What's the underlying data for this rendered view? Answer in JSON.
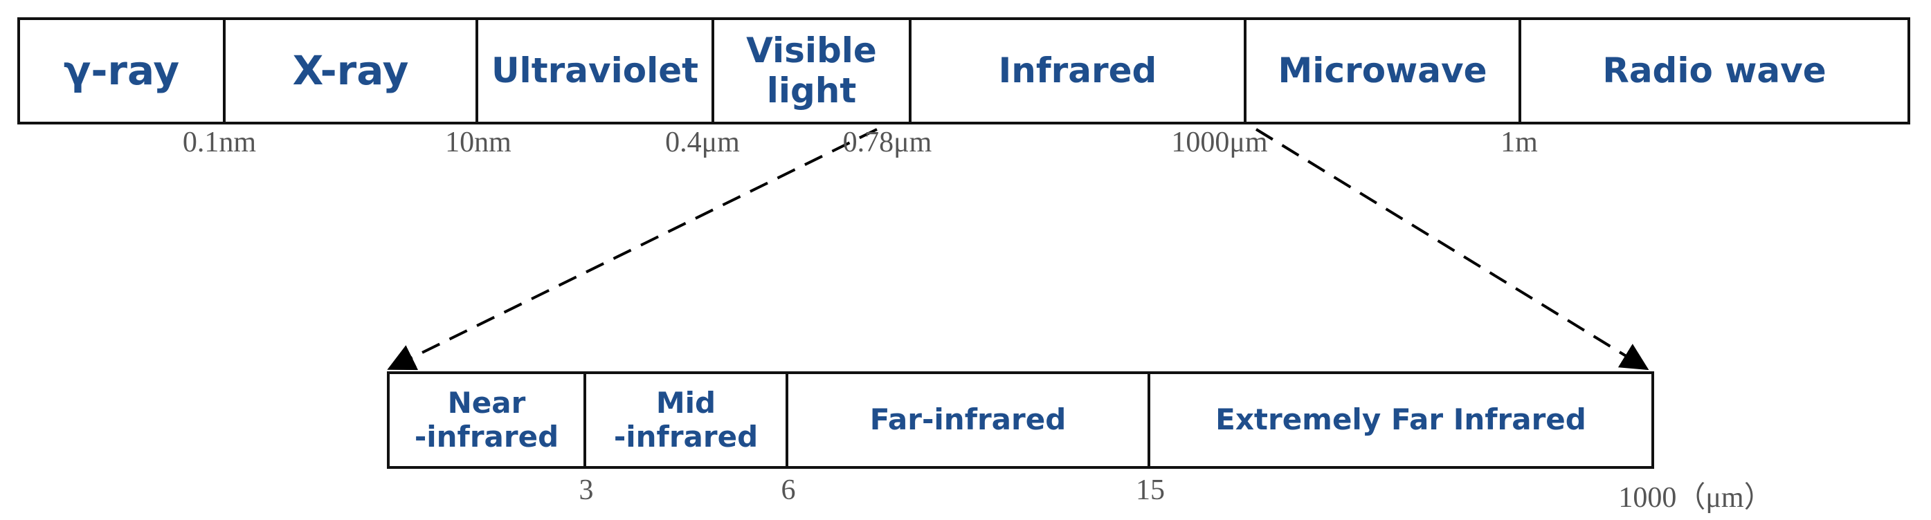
{
  "top": {
    "segments": [
      "γ-ray",
      "X-ray",
      "Ultraviolet",
      "Visible\nlight",
      "Infrared",
      "Microwave",
      "Radio wave"
    ],
    "boundaries": [
      "0.1nm",
      "10nm",
      "0.4μm",
      "0.78μm",
      "1000μm",
      "1m"
    ]
  },
  "bottom": {
    "segments": [
      "Near\n-infrared",
      "Mid\n-infrared",
      "Far-infrared",
      "Extremely Far Infrared"
    ],
    "boundaries": [
      "3",
      "6",
      "15",
      "1000（μm）"
    ]
  }
}
